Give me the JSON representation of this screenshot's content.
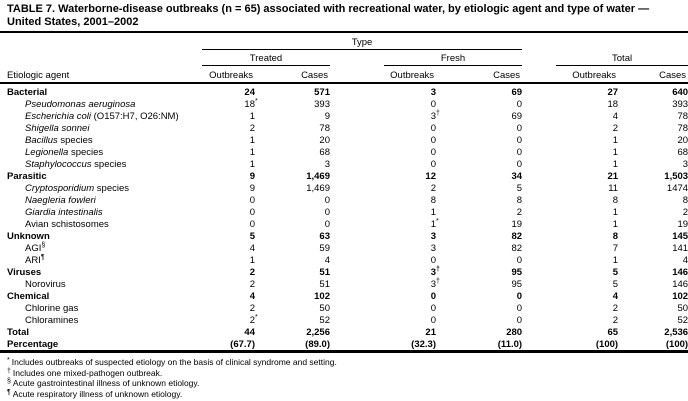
{
  "title": "TABLE 7. Waterborne-disease outbreaks (n = 65) associated with recreational water, by etiologic agent and type of water — United States, 2001–2002",
  "header": {
    "agent_label": "Etiologic agent",
    "type_label": "Type",
    "groups": [
      {
        "label": "Treated"
      },
      {
        "label": "Fresh"
      },
      {
        "label": "Total"
      }
    ],
    "outbreaks_label": "Outbreaks",
    "cases_label": "Cases"
  },
  "rows": [
    {
      "bold": true,
      "indent": false,
      "label": [
        {
          "t": "Bacterial"
        }
      ],
      "values": [
        "24",
        "571",
        "3",
        "69",
        "27",
        "640"
      ]
    },
    {
      "bold": false,
      "indent": true,
      "label": [
        {
          "t": "Pseudomonas aeruginosa",
          "i": true
        }
      ],
      "values": [
        "18*",
        "393",
        "0",
        "0",
        "18",
        "393"
      ]
    },
    {
      "bold": false,
      "indent": true,
      "label": [
        {
          "t": "Escherichia coli",
          "i": true
        },
        {
          "t": " (O157:H7, O26:NM)"
        }
      ],
      "values": [
        "1",
        "9",
        "3†",
        "69",
        "4",
        "78"
      ]
    },
    {
      "bold": false,
      "indent": true,
      "label": [
        {
          "t": "Shigella sonnei",
          "i": true
        }
      ],
      "values": [
        "2",
        "78",
        "0",
        "0",
        "2",
        "78"
      ]
    },
    {
      "bold": false,
      "indent": true,
      "label": [
        {
          "t": "Bacillus",
          "i": true
        },
        {
          "t": " species"
        }
      ],
      "values": [
        "1",
        "20",
        "0",
        "0",
        "1",
        "20"
      ]
    },
    {
      "bold": false,
      "indent": true,
      "label": [
        {
          "t": "Legionella",
          "i": true
        },
        {
          "t": " species"
        }
      ],
      "values": [
        "1",
        "68",
        "0",
        "0",
        "1",
        "68"
      ]
    },
    {
      "bold": false,
      "indent": true,
      "label": [
        {
          "t": "Staphylococcus",
          "i": true
        },
        {
          "t": " species"
        }
      ],
      "values": [
        "1",
        "3",
        "0",
        "0",
        "1",
        "3"
      ]
    },
    {
      "bold": true,
      "indent": false,
      "label": [
        {
          "t": "Parasitic"
        }
      ],
      "values": [
        "9",
        "1,469",
        "12",
        "34",
        "21",
        "1,503"
      ]
    },
    {
      "bold": false,
      "indent": true,
      "label": [
        {
          "t": "Cryptosporidium",
          "i": true
        },
        {
          "t": " species"
        }
      ],
      "values": [
        "9",
        "1,469",
        "2",
        "5",
        "11",
        "1474"
      ]
    },
    {
      "bold": false,
      "indent": true,
      "label": [
        {
          "t": "Naegleria fowleri",
          "i": true
        }
      ],
      "values": [
        "0",
        "0",
        "8",
        "8",
        "8",
        "8"
      ]
    },
    {
      "bold": false,
      "indent": true,
      "label": [
        {
          "t": "Giardia intestinalis",
          "i": true
        }
      ],
      "values": [
        "0",
        "0",
        "1",
        "2",
        "1",
        "2"
      ]
    },
    {
      "bold": false,
      "indent": true,
      "label": [
        {
          "t": "Avian schistosomes"
        }
      ],
      "values": [
        "0",
        "0",
        "1*",
        "19",
        "1",
        "19"
      ]
    },
    {
      "bold": true,
      "indent": false,
      "label": [
        {
          "t": "Unknown"
        }
      ],
      "values": [
        "5",
        "63",
        "3",
        "82",
        "8",
        "145"
      ]
    },
    {
      "bold": false,
      "indent": true,
      "label": [
        {
          "t": "AGI"
        },
        {
          "t": "§",
          "sup": true
        }
      ],
      "values": [
        "4",
        "59",
        "3",
        "82",
        "7",
        "141"
      ]
    },
    {
      "bold": false,
      "indent": true,
      "label": [
        {
          "t": "ARI"
        },
        {
          "t": "¶",
          "sup": true
        }
      ],
      "values": [
        "1",
        "4",
        "0",
        "0",
        "1",
        "4"
      ]
    },
    {
      "bold": true,
      "indent": false,
      "label": [
        {
          "t": "Viruses"
        }
      ],
      "values": [
        "2",
        "51",
        "3†",
        "95",
        "5",
        "146"
      ]
    },
    {
      "bold": false,
      "indent": true,
      "label": [
        {
          "t": "Norovirus"
        }
      ],
      "values": [
        "2",
        "51",
        "3†",
        "95",
        "5",
        "146"
      ]
    },
    {
      "bold": true,
      "indent": false,
      "label": [
        {
          "t": "Chemical"
        }
      ],
      "values": [
        "4",
        "102",
        "0",
        "0",
        "4",
        "102"
      ]
    },
    {
      "bold": false,
      "indent": true,
      "label": [
        {
          "t": "Chlorine gas"
        }
      ],
      "values": [
        "2",
        "50",
        "0",
        "0",
        "2",
        "50"
      ]
    },
    {
      "bold": false,
      "indent": true,
      "label": [
        {
          "t": "Chloramines"
        }
      ],
      "values": [
        "2*",
        "52",
        "0",
        "0",
        "2",
        "52"
      ]
    },
    {
      "bold": true,
      "indent": false,
      "label": [
        {
          "t": "Total"
        }
      ],
      "values": [
        "44",
        "2,256",
        "21",
        "280",
        "65",
        "2,536"
      ]
    },
    {
      "bold": true,
      "indent": false,
      "label": [
        {
          "t": "Percentage"
        }
      ],
      "values": [
        "(67.7)",
        "(89.0)",
        "(32.3)",
        "(11.0)",
        "(100)",
        "(100)"
      ]
    }
  ],
  "footnotes": [
    {
      "marker": "*",
      "text": "Includes outbreaks of suspected etiology on the basis of clinical syndrome and setting."
    },
    {
      "marker": "†",
      "text": "Includes one mixed-pathogen outbreak."
    },
    {
      "marker": "§",
      "text": "Acute gastrointestinal illness of unknown etiology."
    },
    {
      "marker": "¶",
      "text": "Acute respiratory illness of unknown etiology."
    }
  ],
  "colors": {
    "text": "#000000",
    "background": "#ffffff",
    "rule": "#000000"
  }
}
